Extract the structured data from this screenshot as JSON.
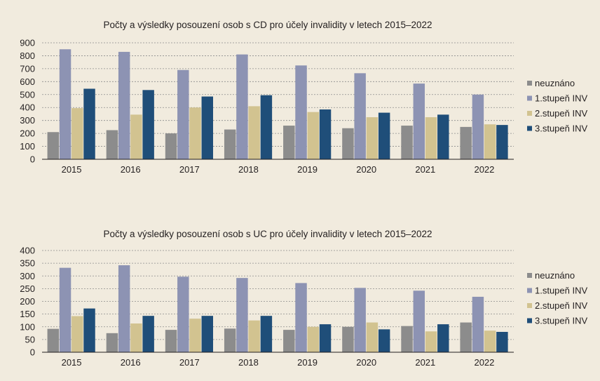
{
  "chart_data": [
    {
      "type": "bar",
      "title": "Počty a výsledky posouzení osob s CD pro účely invalidity v letech 2015–2022",
      "categories": [
        "2015",
        "2016",
        "2017",
        "2018",
        "2019",
        "2020",
        "2021",
        "2022"
      ],
      "yticks": [
        "0",
        "100",
        "200",
        "300",
        "400",
        "500",
        "600",
        "700",
        "800",
        "900"
      ],
      "ylim": [
        0,
        900
      ],
      "grid": true,
      "legend_position": "right",
      "series": [
        {
          "name": "neuznáno",
          "color": "#8c8c8c",
          "values": [
            210,
            225,
            200,
            230,
            260,
            240,
            260,
            250
          ]
        },
        {
          "name": "1.stupeň INV",
          "color": "#8d93b3",
          "values": [
            850,
            830,
            690,
            810,
            725,
            665,
            585,
            500
          ]
        },
        {
          "name": "2.stupeň INV",
          "color": "#d2c390",
          "values": [
            395,
            345,
            400,
            410,
            365,
            325,
            325,
            270
          ]
        },
        {
          "name": "3.stupeň INV",
          "color": "#1f4e79",
          "values": [
            545,
            535,
            485,
            495,
            385,
            360,
            345,
            265
          ]
        }
      ]
    },
    {
      "type": "bar",
      "title": "Počty a výsledky posouzení osob s UC pro účely invalidity v letech 2015–2022",
      "categories": [
        "2015",
        "2016",
        "2017",
        "2018",
        "2019",
        "2020",
        "2021",
        "2022"
      ],
      "yticks": [
        "0",
        "50",
        "100",
        "150",
        "200",
        "250",
        "300",
        "350",
        "400"
      ],
      "ylim": [
        0,
        400
      ],
      "grid": true,
      "legend_position": "right",
      "series": [
        {
          "name": "neuznáno",
          "color": "#8c8c8c",
          "values": [
            92,
            75,
            88,
            93,
            88,
            100,
            103,
            117
          ]
        },
        {
          "name": "1.stupeň INV",
          "color": "#8d93b3",
          "values": [
            332,
            342,
            297,
            292,
            272,
            253,
            242,
            218
          ]
        },
        {
          "name": "2.stupeň INV",
          "color": "#d2c390",
          "values": [
            142,
            113,
            132,
            125,
            100,
            117,
            82,
            85
          ]
        },
        {
          "name": "3.stupeň INV",
          "color": "#1f4e79",
          "values": [
            172,
            143,
            143,
            143,
            110,
            90,
            110,
            80
          ]
        }
      ]
    }
  ]
}
